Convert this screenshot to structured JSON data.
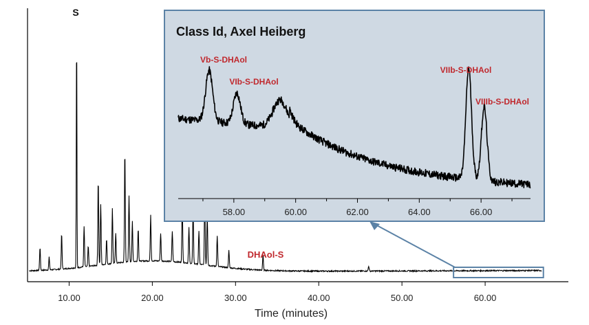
{
  "chart_data": [
    {
      "type": "line",
      "title": "",
      "xlabel": "Time (minutes)",
      "ylabel": "",
      "xlim": [
        5,
        70
      ],
      "ylim": [
        0,
        100
      ],
      "x_ticks": [
        10.0,
        20.0,
        30.0,
        40.0,
        50.0,
        60.0
      ],
      "x_tick_labels": [
        "10.00",
        "20.00",
        "30.00",
        "40.00",
        "50.00",
        "60.00"
      ],
      "peaks": [
        {
          "x": 6.5,
          "y": 9
        },
        {
          "x": 7.6,
          "y": 5
        },
        {
          "x": 9.1,
          "y": 14
        },
        {
          "x": 10.9,
          "y": 95
        },
        {
          "x": 11.8,
          "y": 16
        },
        {
          "x": 12.3,
          "y": 8
        },
        {
          "x": 13.5,
          "y": 34
        },
        {
          "x": 13.8,
          "y": 24
        },
        {
          "x": 14.5,
          "y": 10
        },
        {
          "x": 15.2,
          "y": 22
        },
        {
          "x": 15.6,
          "y": 12
        },
        {
          "x": 16.7,
          "y": 44
        },
        {
          "x": 17.2,
          "y": 26
        },
        {
          "x": 17.6,
          "y": 16
        },
        {
          "x": 18.3,
          "y": 13
        },
        {
          "x": 19.8,
          "y": 18
        },
        {
          "x": 21.0,
          "y": 11
        },
        {
          "x": 22.4,
          "y": 12
        },
        {
          "x": 23.6,
          "y": 23
        },
        {
          "x": 24.4,
          "y": 14
        },
        {
          "x": 24.9,
          "y": 22
        },
        {
          "x": 25.6,
          "y": 13
        },
        {
          "x": 26.3,
          "y": 28
        },
        {
          "x": 26.6,
          "y": 20
        },
        {
          "x": 27.8,
          "y": 12
        },
        {
          "x": 29.2,
          "y": 7
        },
        {
          "x": 33.3,
          "y": 6
        },
        {
          "x": 46.0,
          "y": 2
        }
      ],
      "annotations": [
        {
          "text": "S",
          "x": 10.9
        },
        {
          "text": "DHAol-S",
          "x": 33.3
        }
      ],
      "zoom_window": {
        "x": [
          56.2,
          67.0
        ]
      }
    },
    {
      "type": "line",
      "title": "Class Id, Axel Heiberg",
      "xlabel": "",
      "ylabel": "",
      "xlim": [
        56.2,
        67.6
      ],
      "ylim": [
        0,
        100
      ],
      "x_ticks": [
        58.0,
        60.0,
        62.0,
        64.0,
        66.0
      ],
      "x_tick_labels": [
        "58.00",
        "60.00",
        "62.00",
        "64.00",
        "66.00"
      ],
      "peaks": [
        {
          "x": 57.2,
          "y": 33
        },
        {
          "x": 58.1,
          "y": 20
        },
        {
          "x": 59.5,
          "y": 18
        },
        {
          "x": 65.6,
          "y": 72
        },
        {
          "x": 66.1,
          "y": 48
        }
      ],
      "annotations": [
        {
          "text": "Vb-S-DHAol",
          "x": 57.2
        },
        {
          "text": "VIb-S-DHAol",
          "x": 58.5
        },
        {
          "text": "VIIb-S-DHAol",
          "x": 65.6
        },
        {
          "text": "VIIIb-S-DHAol",
          "x": 66.1
        }
      ]
    }
  ],
  "colors": {
    "trace": "#000000",
    "peak_label": "#c0282d",
    "inset_fill": "#cfd9e3",
    "inset_border": "#5b82a6",
    "window_border": "#5b82a6"
  }
}
